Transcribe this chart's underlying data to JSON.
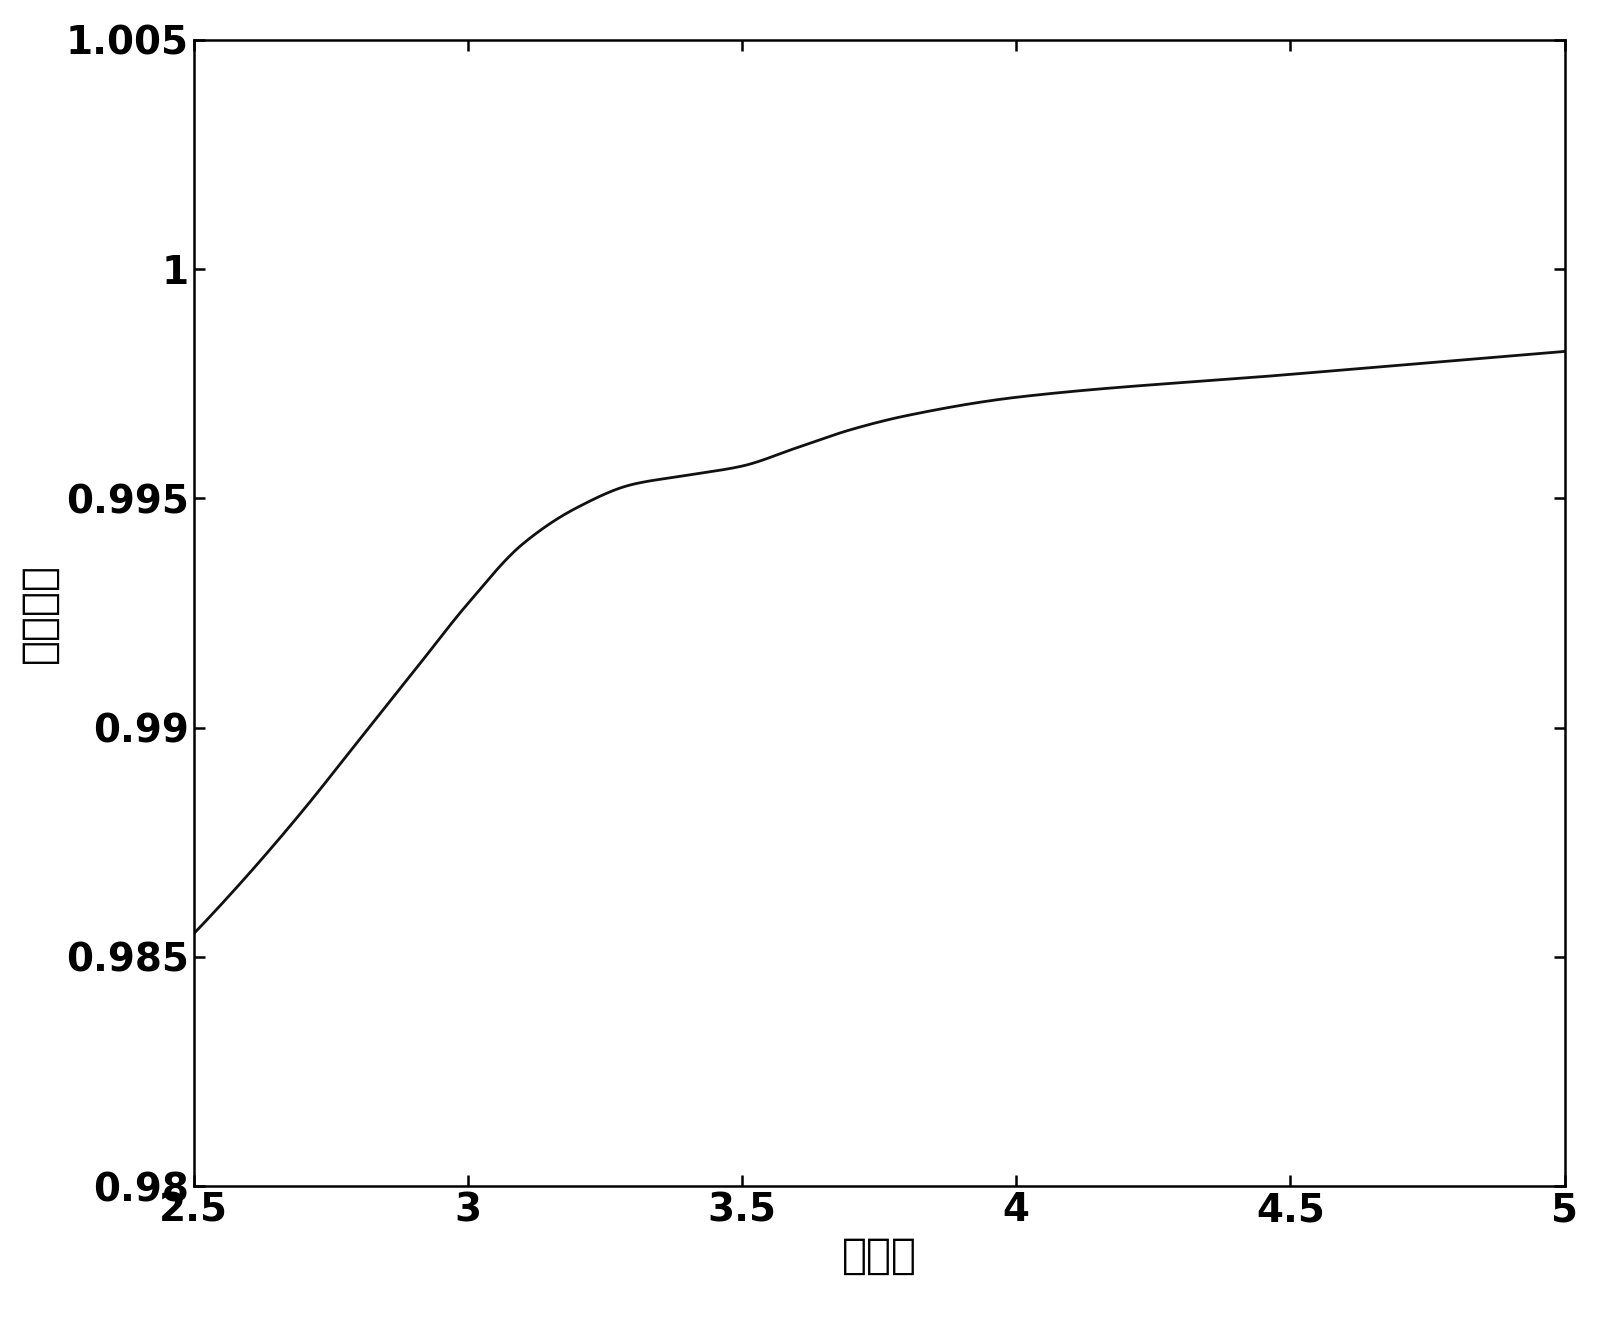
{
  "x_min": 2.5,
  "x_max": 5.0,
  "y_min": 0.98,
  "y_max": 1.005,
  "x_ticks": [
    2.5,
    3.0,
    3.5,
    4.0,
    4.5,
    5.0
  ],
  "y_ticks": [
    0.98,
    0.985,
    0.99,
    0.995,
    1.0,
    1.005
  ],
  "xlabel": "高径比",
  "ylabel": "收集效率",
  "line_color": "#111111",
  "line_width": 2.0,
  "background_color": "#ffffff",
  "key_points_x": [
    2.5,
    2.6,
    2.7,
    2.8,
    2.9,
    3.0,
    3.1,
    3.2,
    3.3,
    3.4,
    3.5,
    3.6,
    3.7,
    3.8,
    4.0,
    4.5,
    5.0
  ],
  "key_points_y": [
    0.9855,
    0.9868,
    0.9882,
    0.9897,
    0.9912,
    0.9927,
    0.994,
    0.9948,
    0.9953,
    0.9955,
    0.9957,
    0.9961,
    0.9965,
    0.9968,
    0.9972,
    0.9977,
    0.9982
  ]
}
